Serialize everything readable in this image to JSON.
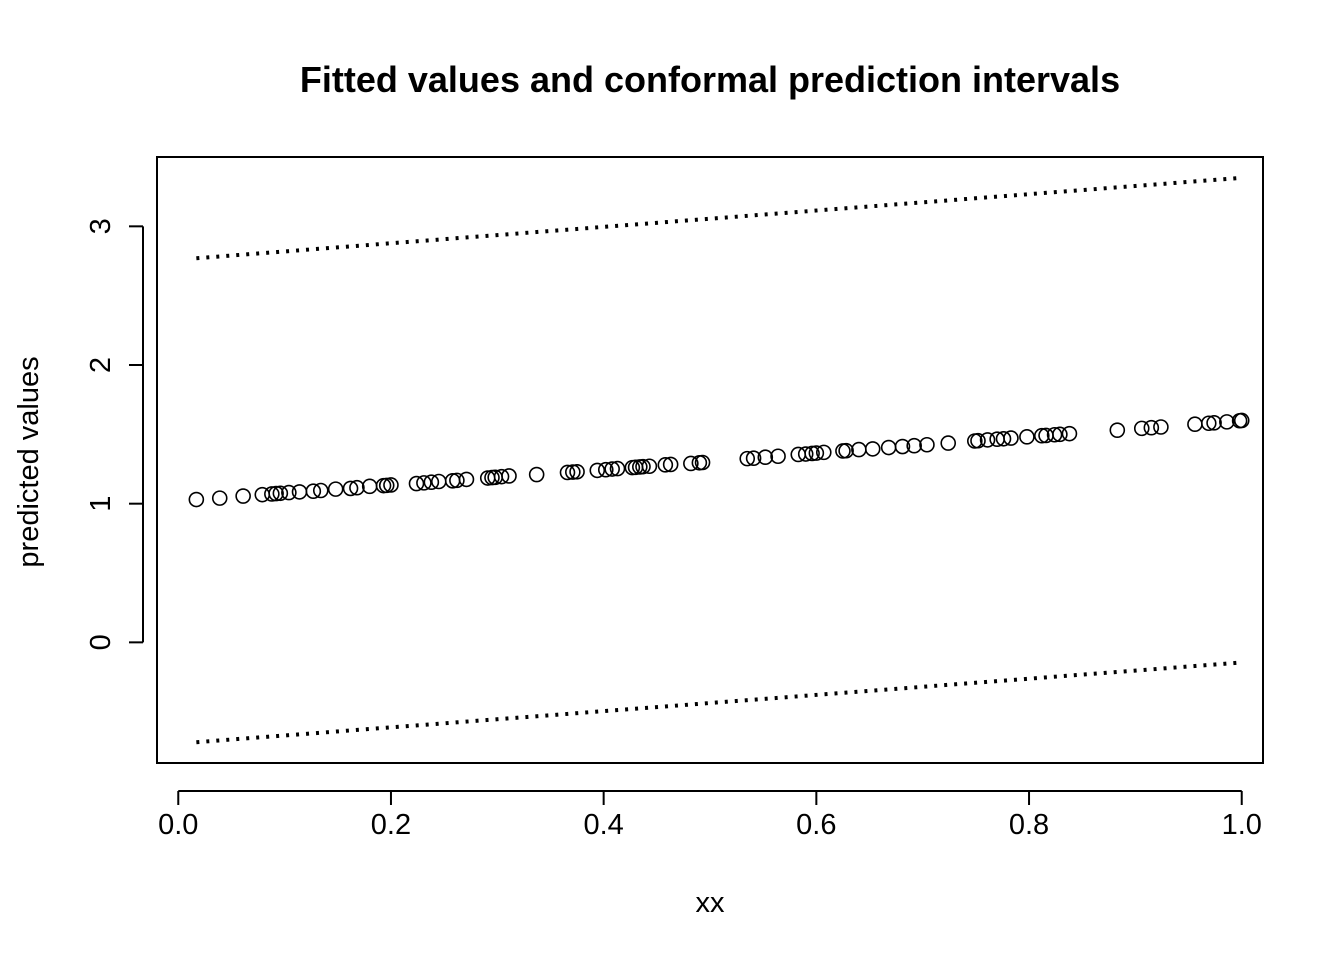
{
  "chart_data": {
    "type": "scatter",
    "title": "Fitted values and conformal prediction intervals",
    "xlabel": "xx",
    "ylabel": "predicted values",
    "x_ticks": [
      0.0,
      0.2,
      0.4,
      0.6,
      0.8,
      1.0
    ],
    "x_tick_labels": [
      "0.0",
      "0.2",
      "0.4",
      "0.6",
      "0.8",
      "1.0"
    ],
    "y_ticks": [
      0,
      1,
      2,
      3
    ],
    "y_tick_labels": [
      "0",
      "1",
      "2",
      "3"
    ],
    "xlim": [
      -0.02,
      1.02
    ],
    "ylim": [
      -0.87,
      3.5
    ],
    "grid": false,
    "legend": "none",
    "fitted": {
      "x": [
        0.017,
        0.039,
        0.061,
        0.079,
        0.088,
        0.092,
        0.096,
        0.104,
        0.114,
        0.127,
        0.134,
        0.148,
        0.162,
        0.168,
        0.18,
        0.193,
        0.196,
        0.2,
        0.224,
        0.231,
        0.238,
        0.245,
        0.258,
        0.262,
        0.271,
        0.291,
        0.295,
        0.298,
        0.304,
        0.311,
        0.337,
        0.366,
        0.371,
        0.375,
        0.394,
        0.402,
        0.408,
        0.413,
        0.427,
        0.43,
        0.434,
        0.437,
        0.443,
        0.458,
        0.463,
        0.482,
        0.49,
        0.493,
        0.535,
        0.541,
        0.552,
        0.564,
        0.583,
        0.59,
        0.596,
        0.6,
        0.607,
        0.625,
        0.628,
        0.64,
        0.653,
        0.668,
        0.681,
        0.692,
        0.704,
        0.724,
        0.749,
        0.752,
        0.761,
        0.77,
        0.776,
        0.783,
        0.798,
        0.812,
        0.816,
        0.824,
        0.829,
        0.838,
        0.883,
        0.906,
        0.915,
        0.924,
        0.956,
        0.969,
        0.974,
        0.986,
        0.998,
        1.0
      ],
      "y": [
        1.03,
        1.04,
        1.055,
        1.065,
        1.07,
        1.073,
        1.075,
        1.08,
        1.085,
        1.09,
        1.095,
        1.105,
        1.11,
        1.115,
        1.125,
        1.13,
        1.132,
        1.135,
        1.145,
        1.15,
        1.155,
        1.16,
        1.165,
        1.168,
        1.175,
        1.185,
        1.188,
        1.19,
        1.195,
        1.2,
        1.21,
        1.225,
        1.228,
        1.23,
        1.24,
        1.245,
        1.25,
        1.253,
        1.26,
        1.262,
        1.265,
        1.267,
        1.27,
        1.28,
        1.283,
        1.29,
        1.295,
        1.297,
        1.325,
        1.328,
        1.335,
        1.342,
        1.355,
        1.358,
        1.362,
        1.365,
        1.37,
        1.38,
        1.382,
        1.39,
        1.395,
        1.405,
        1.412,
        1.418,
        1.425,
        1.437,
        1.452,
        1.454,
        1.46,
        1.465,
        1.468,
        1.473,
        1.482,
        1.49,
        1.492,
        1.497,
        1.5,
        1.505,
        1.53,
        1.543,
        1.548,
        1.553,
        1.573,
        1.58,
        1.583,
        1.59,
        1.598,
        1.6
      ]
    },
    "upper_interval": {
      "x": [
        0.017,
        1.0
      ],
      "y": [
        2.77,
        3.35
      ]
    },
    "lower_interval": {
      "x": [
        0.017,
        1.0
      ],
      "y": [
        -0.72,
        -0.145
      ]
    }
  }
}
